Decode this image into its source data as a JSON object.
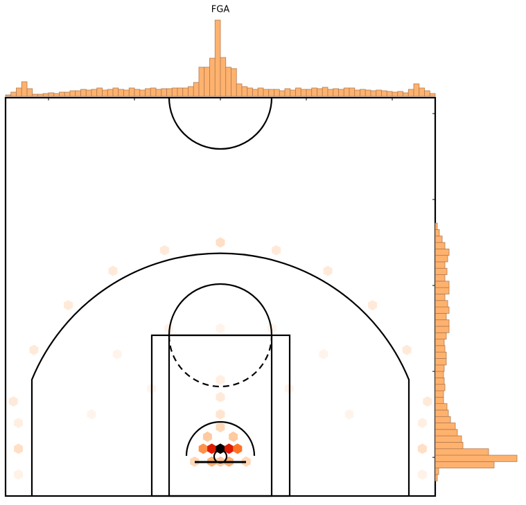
{
  "chart_data": [
    {
      "type": "hexbin",
      "title": "FGA",
      "xlim": [
        -25,
        25
      ],
      "ylim": [
        -4.5,
        41.85
      ],
      "xticks": [
        -20,
        -10,
        0,
        10,
        20
      ],
      "yticks": [
        0,
        10,
        20,
        30,
        40
      ],
      "colors": [
        "#ffffff",
        "#ffb070",
        "#ff5500",
        "#cc0000",
        "#000000"
      ],
      "vmax": 120,
      "x": [
        -2,
        -1,
        0,
        1,
        2,
        -1.5,
        0,
        1.5,
        0,
        0,
        0,
        -3,
        3,
        0,
        -1,
        1,
        -23.5,
        23.5,
        -23.5,
        23.5,
        -23.5,
        23.5,
        24.1,
        21.7,
        17.7,
        12.5,
        6.5,
        0,
        -6.5,
        -12.5,
        -17.7,
        -21.7,
        -24.1,
        -8,
        8,
        -12,
        12,
        -15,
        15,
        0,
        -6,
        6
      ],
      "y": [
        1,
        1,
        1,
        1,
        1,
        2.4,
        3.5,
        2.4,
        5,
        7,
        9,
        -0.5,
        -0.5,
        -0.5,
        -0.5,
        -0.5,
        1,
        1,
        4,
        4,
        -2,
        -2,
        6.5,
        12.5,
        17.7,
        21.7,
        24.1,
        25,
        24.1,
        21.7,
        17.7,
        12.5,
        6.5,
        8,
        8,
        12,
        12,
        5,
        5,
        15,
        15,
        15
      ],
      "counts": [
        40,
        80,
        120,
        80,
        50,
        20,
        15,
        20,
        10,
        8,
        6,
        15,
        15,
        20,
        30,
        30,
        12,
        12,
        6,
        6,
        5,
        5,
        8,
        8,
        8,
        8,
        8,
        12,
        8,
        8,
        8,
        8,
        8,
        4,
        4,
        4,
        4,
        4,
        4,
        4,
        4,
        4
      ]
    },
    {
      "type": "histogram",
      "orientation": "vertical",
      "color": "#ffb26e",
      "edgecolor": "#b07a50",
      "ylim": [
        0,
        110
      ],
      "bins": [
        -25,
        -24.375,
        -23.75,
        -23.125,
        -22.5,
        -21.875,
        -21.25,
        -20.625,
        -20,
        -19.375,
        -18.75,
        -18.125,
        -17.5,
        -16.875,
        -16.25,
        -15.625,
        -15,
        -14.375,
        -13.75,
        -13.125,
        -12.5,
        -11.875,
        -11.25,
        -10.625,
        -10,
        -9.375,
        -8.75,
        -8.125,
        -7.5,
        -6.875,
        -6.25,
        -5.625,
        -5,
        -4.375,
        -3.75,
        -3.125,
        -2.5,
        -1.875,
        -1.25,
        -0.625,
        0,
        0.625,
        1.25,
        1.875,
        2.5,
        3.125,
        3.75,
        4.375,
        5,
        5.625,
        6.25,
        6.875,
        7.5,
        8.125,
        8.75,
        9.375,
        10,
        10.625,
        11.25,
        11.875,
        12.5,
        13.125,
        13.75,
        14.375,
        15,
        15.625,
        16.25,
        16.875,
        17.5,
        18.125,
        18.75,
        19.375,
        20,
        20.625,
        21.25,
        21.875,
        22.5,
        23.125,
        23.75,
        24.375,
        25
      ],
      "counts": [
        2,
        6,
        12,
        21,
        11,
        3,
        3,
        4,
        5,
        4,
        6,
        6,
        8,
        8,
        10,
        9,
        10,
        12,
        9,
        10,
        12,
        10,
        9,
        12,
        10,
        9,
        11,
        12,
        10,
        11,
        11,
        12,
        12,
        12,
        14,
        20,
        42,
        42,
        55,
        110,
        56,
        42,
        40,
        18,
        14,
        12,
        10,
        12,
        10,
        10,
        10,
        8,
        11,
        9,
        12,
        10,
        10,
        12,
        11,
        13,
        10,
        11,
        10,
        12,
        12,
        9,
        10,
        9,
        8,
        9,
        8,
        7,
        6,
        7,
        5,
        10,
        18,
        12,
        8,
        4
      ]
    },
    {
      "type": "histogram",
      "orientation": "horizontal",
      "color": "#ffb26e",
      "edgecolor": "#b07a50",
      "xlim": [
        0,
        118
      ],
      "bins": [
        -2.75,
        -2,
        -1.25,
        -0.5,
        0.25,
        1,
        1.75,
        2.5,
        3.25,
        4,
        4.75,
        5.5,
        6.25,
        7,
        7.75,
        8.5,
        9.25,
        10,
        10.75,
        11.5,
        12.25,
        13,
        13.75,
        14.5,
        15.25,
        16,
        16.75,
        17.5,
        18.25,
        19,
        19.75,
        20.5,
        21.25,
        22,
        22.75,
        23.5,
        24.25,
        25,
        25.75,
        26.5,
        27.25
      ],
      "counts": [
        3,
        5,
        85,
        118,
        77,
        40,
        38,
        32,
        29,
        22,
        19,
        17,
        12,
        12,
        14,
        13,
        12,
        13,
        16,
        16,
        14,
        13,
        16,
        20,
        20,
        16,
        20,
        18,
        14,
        20,
        20,
        14,
        17,
        14,
        18,
        20,
        14,
        10,
        6,
        3
      ]
    }
  ]
}
